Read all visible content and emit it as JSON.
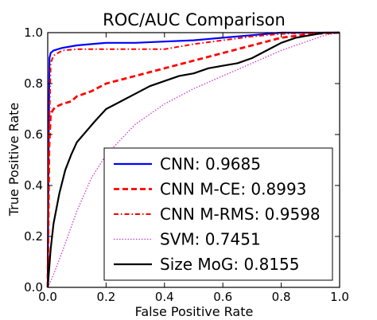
{
  "chart_data": {
    "type": "line",
    "title": "ROC/AUC Comparison",
    "xlabel": "False Positive Rate",
    "ylabel": "True Positive Rate",
    "xlim": [
      0,
      1
    ],
    "ylim": [
      0,
      1
    ],
    "xticks": [
      "0.0",
      "0.2",
      "0.4",
      "0.6",
      "0.8",
      "1.0"
    ],
    "yticks": [
      "0.0",
      "0.2",
      "0.4",
      "0.6",
      "0.8",
      "1.0"
    ],
    "grid": false,
    "legend_position": "lower-right",
    "series": [
      {
        "name": "CNN: 0.9685",
        "color": "#0000ff",
        "style": "solid",
        "x": [
          0,
          0.003,
          0.006,
          0.01,
          0.02,
          0.05,
          0.1,
          0.15,
          0.2,
          0.3,
          0.4,
          0.5,
          0.6,
          0.7,
          0.8,
          0.9,
          1.0
        ],
        "y": [
          0,
          0.55,
          0.9,
          0.92,
          0.93,
          0.94,
          0.95,
          0.955,
          0.96,
          0.96,
          0.965,
          0.97,
          0.98,
          0.99,
          1.0,
          1.0,
          1.0
        ]
      },
      {
        "name": "CNN M-CE: 0.8993",
        "color": "#ff0000",
        "style": "dashed",
        "x": [
          0,
          0.005,
          0.01,
          0.02,
          0.03,
          0.05,
          0.08,
          0.1,
          0.15,
          0.2,
          0.3,
          0.4,
          0.5,
          0.6,
          0.7,
          0.8,
          0.9,
          1.0
        ],
        "y": [
          0,
          0.55,
          0.68,
          0.7,
          0.71,
          0.72,
          0.73,
          0.75,
          0.77,
          0.8,
          0.83,
          0.86,
          0.89,
          0.92,
          0.95,
          0.98,
          0.995,
          1.0
        ]
      },
      {
        "name": "CNN M-RMS: 0.9598",
        "color": "#ff0000",
        "style": "dashdot",
        "x": [
          0,
          0.003,
          0.01,
          0.02,
          0.05,
          0.1,
          0.2,
          0.3,
          0.4,
          0.45,
          0.5,
          0.6,
          0.7,
          0.8,
          0.9,
          1.0
        ],
        "y": [
          0,
          0.5,
          0.88,
          0.91,
          0.93,
          0.935,
          0.935,
          0.935,
          0.935,
          0.945,
          0.955,
          0.97,
          0.985,
          0.995,
          1.0,
          1.0
        ]
      },
      {
        "name": "SVM: 0.7451",
        "color": "#cc33cc",
        "style": "dotted",
        "x": [
          0,
          0.02,
          0.05,
          0.1,
          0.15,
          0.2,
          0.25,
          0.3,
          0.35,
          0.4,
          0.5,
          0.6,
          0.7,
          0.8,
          0.9,
          0.95,
          1.0
        ],
        "y": [
          0,
          0.05,
          0.14,
          0.3,
          0.43,
          0.52,
          0.58,
          0.64,
          0.68,
          0.72,
          0.78,
          0.83,
          0.88,
          0.93,
          0.97,
          0.99,
          1.0
        ]
      },
      {
        "name": "Size MoG: 0.8155",
        "color": "#000000",
        "style": "solid",
        "x": [
          0,
          0.01,
          0.02,
          0.04,
          0.06,
          0.08,
          0.1,
          0.13,
          0.16,
          0.2,
          0.25,
          0.3,
          0.35,
          0.4,
          0.45,
          0.5,
          0.55,
          0.6,
          0.65,
          0.7,
          0.75,
          0.8,
          0.85,
          0.9,
          0.95,
          1.0
        ],
        "y": [
          0,
          0.15,
          0.25,
          0.37,
          0.46,
          0.52,
          0.57,
          0.61,
          0.65,
          0.7,
          0.73,
          0.76,
          0.79,
          0.81,
          0.83,
          0.84,
          0.86,
          0.87,
          0.88,
          0.9,
          0.93,
          0.96,
          0.98,
          0.99,
          1.0,
          1.0
        ]
      }
    ]
  }
}
